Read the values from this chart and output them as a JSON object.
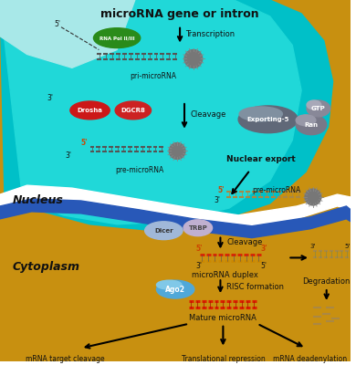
{
  "bg_cytoplasm": "#C8900A",
  "bg_nucleus_teal": "#00C8C8",
  "bg_nucleus_light": "#40DCDC",
  "bg_top_white": "#C8ECEC",
  "white_wave": "#FFFFFF",
  "blue_wave": "#2050B0",
  "labels": {
    "title": "microRNA gene or intron",
    "five_prime_top": "5'",
    "three_prime_1": "3'",
    "transcription": "Transcription",
    "pri_mirna": "pri-microRNA",
    "cleavage1": "Cleavage",
    "five_prime_orange": "5'",
    "three_prime_2": "3'",
    "pre_mirna1": "pre-microRNA",
    "nuclear_export": "Nuclear export",
    "five_prime_export": "5'",
    "three_prime_export": "3'",
    "pre_mirna2": "pre-microRNA",
    "cleavage2": "Cleavage",
    "five_prime_d1": "5'",
    "three_prime_d1": "3'",
    "three_prime_d2": "3'",
    "five_prime_d2": "5'",
    "three_prime_d3": "3'",
    "five_prime_d3": "5'",
    "mirna_duplex": "microRNA duplex",
    "risc": "RISC formation",
    "mature": "Mature microRNA",
    "degradation": "Degradation",
    "mrna_cleavage": "mRNA target cleavage",
    "trans_repression": "Translational repression",
    "mrna_deadenylation": "mRNA deadenylation",
    "nucleus": "Nucleus",
    "cytoplasm": "Cytoplasm",
    "rna_pol": "RNA Pol II/III",
    "drosha": "Drosha",
    "dgcr8": "DGCR8",
    "exporting5": "Exporting-5",
    "ran": "Ran",
    "gtp": "GTP",
    "dicer": "Dicer",
    "trbp": "TRBP",
    "ago2": "Ago2"
  }
}
